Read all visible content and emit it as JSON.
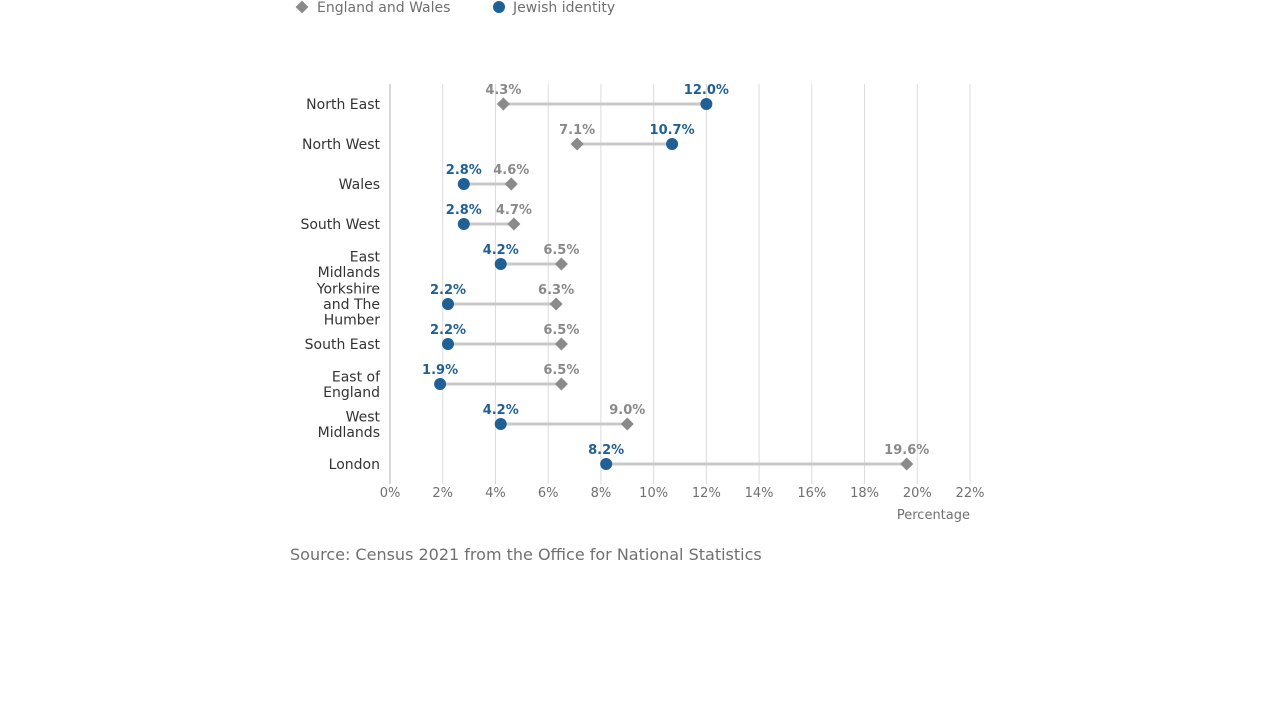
{
  "legend": {
    "items": [
      {
        "label": "England and Wales",
        "icon": "diamond-icon",
        "color": "#8a8a8a"
      },
      {
        "label": "Jewish identity",
        "icon": "circle-icon",
        "color": "#206095"
      }
    ]
  },
  "source": "Source: Census 2021 from the Office for National Statistics",
  "chart_data": {
    "type": "dot-range",
    "orientation": "horizontal",
    "xlabel": "Percentage",
    "xlim": [
      0,
      22
    ],
    "xticks": [
      0,
      2,
      4,
      6,
      8,
      10,
      12,
      14,
      16,
      18,
      20,
      22
    ],
    "xtick_labels": [
      "0%",
      "2%",
      "4%",
      "6%",
      "8%",
      "10%",
      "12%",
      "14%",
      "16%",
      "18%",
      "20%",
      "22%"
    ],
    "grid": true,
    "categories": [
      [
        "North East"
      ],
      [
        "North West"
      ],
      [
        "Wales"
      ],
      [
        "South West"
      ],
      [
        "East",
        "Midlands"
      ],
      [
        "Yorkshire",
        "and The",
        "Humber"
      ],
      [
        "South East"
      ],
      [
        "East of",
        "England"
      ],
      [
        "West",
        "Midlands"
      ],
      [
        "London"
      ]
    ],
    "series": [
      {
        "name": "England and Wales",
        "marker": "diamond",
        "color": "#8a8a8a",
        "values": [
          4.3,
          7.1,
          4.6,
          4.7,
          6.5,
          6.3,
          6.5,
          6.5,
          9.0,
          19.6
        ],
        "labels": [
          "4.3%",
          "7.1%",
          "4.6%",
          "4.7%",
          "6.5%",
          "6.3%",
          "6.5%",
          "6.5%",
          "9.0%",
          "19.6%"
        ]
      },
      {
        "name": "Jewish identity",
        "marker": "circle",
        "color": "#206095",
        "values": [
          12.0,
          10.7,
          2.8,
          2.8,
          4.2,
          2.2,
          2.2,
          1.9,
          4.2,
          8.2
        ],
        "labels": [
          "12.0%",
          "10.7%",
          "2.8%",
          "2.8%",
          "4.2%",
          "2.2%",
          "2.2%",
          "1.9%",
          "4.2%",
          "8.2%"
        ]
      }
    ],
    "connector_color": "#c8c8c8",
    "gridline_color": "#dcdcdc"
  }
}
